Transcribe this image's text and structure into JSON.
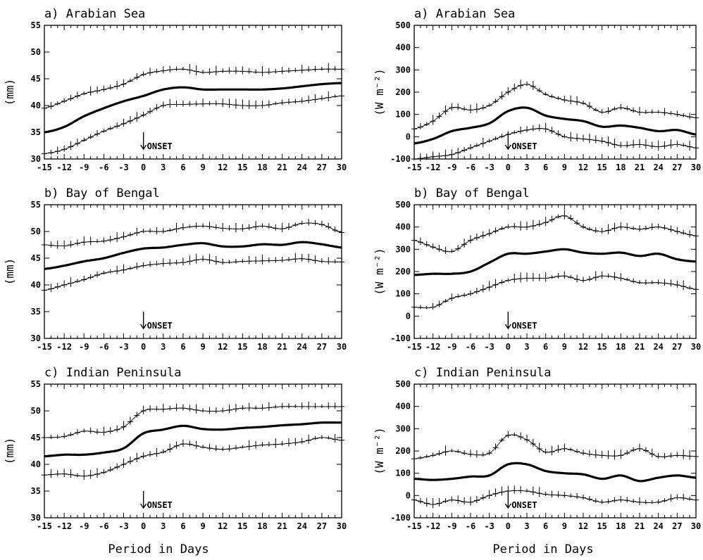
{
  "xlabel": "Period in Days",
  "chart_data": [
    {
      "type": "line",
      "title": "a) Arabian Sea",
      "ylabel": "(mm)",
      "xlim": [
        -15,
        30
      ],
      "ylim": [
        30,
        55
      ],
      "xticks": [
        -15,
        -12,
        -9,
        -6,
        -3,
        0,
        3,
        6,
        9,
        12,
        15,
        18,
        21,
        24,
        27,
        30
      ],
      "yticks": [
        30,
        35,
        40,
        45,
        50,
        55
      ],
      "annotation": {
        "text": "ONSET",
        "x": 0
      },
      "x": [
        -15,
        -12,
        -9,
        -6,
        -3,
        0,
        3,
        6,
        9,
        12,
        15,
        18,
        21,
        24,
        27,
        30
      ],
      "series": [
        {
          "role": "upper",
          "values": [
            39.5,
            40.8,
            42.2,
            43.0,
            44.0,
            45.8,
            46.5,
            46.8,
            46.2,
            46.4,
            46.4,
            46.2,
            46.4,
            46.6,
            46.8,
            46.8
          ]
        },
        {
          "role": "mean",
          "values": [
            35.0,
            36.0,
            38.0,
            39.5,
            40.8,
            41.8,
            43.0,
            43.4,
            43.0,
            43.0,
            43.0,
            43.0,
            43.2,
            43.6,
            44.0,
            44.2
          ]
        },
        {
          "role": "lower",
          "values": [
            31.0,
            31.8,
            33.5,
            35.2,
            36.6,
            38.2,
            40.0,
            40.2,
            40.3,
            40.3,
            40.0,
            40.0,
            40.5,
            40.8,
            41.3,
            41.8
          ]
        }
      ]
    },
    {
      "type": "line",
      "title": "a) Arabian Sea",
      "ylabel": "(W m⁻²)",
      "xlim": [
        -15,
        30
      ],
      "ylim": [
        -100,
        500
      ],
      "xticks": [
        -15,
        -12,
        -9,
        -6,
        -3,
        0,
        3,
        6,
        9,
        12,
        15,
        18,
        21,
        24,
        27,
        30
      ],
      "yticks": [
        -100,
        0,
        100,
        200,
        300,
        400,
        500
      ],
      "annotation": {
        "text": "ONSET",
        "x": 0
      },
      "x": [
        -15,
        -12,
        -9,
        -6,
        -3,
        0,
        3,
        6,
        9,
        12,
        15,
        18,
        21,
        24,
        27,
        30
      ],
      "series": [
        {
          "role": "upper",
          "values": [
            35,
            70,
            130,
            120,
            140,
            200,
            235,
            190,
            165,
            150,
            110,
            130,
            110,
            110,
            100,
            85
          ]
        },
        {
          "role": "mean",
          "values": [
            -30,
            -10,
            25,
            40,
            60,
            115,
            130,
            95,
            80,
            70,
            45,
            50,
            40,
            25,
            30,
            10
          ]
        },
        {
          "role": "lower",
          "values": [
            -100,
            -90,
            -80,
            -50,
            -20,
            10,
            30,
            35,
            0,
            -10,
            -20,
            -40,
            -35,
            -45,
            -35,
            -50
          ]
        }
      ]
    },
    {
      "type": "line",
      "title": "b) Bay of Bengal",
      "ylabel": "(mm)",
      "xlim": [
        -15,
        30
      ],
      "ylim": [
        30,
        55
      ],
      "xticks": [
        -15,
        -12,
        -9,
        -6,
        -3,
        0,
        3,
        6,
        9,
        12,
        15,
        18,
        21,
        24,
        27,
        30
      ],
      "yticks": [
        30,
        35,
        40,
        45,
        50,
        55
      ],
      "annotation": {
        "text": "ONSET",
        "x": 0
      },
      "x": [
        -15,
        -12,
        -9,
        -6,
        -3,
        0,
        3,
        6,
        9,
        12,
        15,
        18,
        21,
        24,
        27,
        30
      ],
      "series": [
        {
          "role": "upper",
          "values": [
            47.5,
            47.3,
            48.0,
            48.2,
            49.0,
            50.0,
            50.0,
            50.7,
            51.0,
            50.6,
            50.5,
            51.0,
            50.5,
            51.5,
            51.3,
            49.8
          ]
        },
        {
          "role": "mean",
          "values": [
            43.0,
            43.6,
            44.4,
            45.0,
            46.0,
            46.8,
            47.0,
            47.5,
            47.8,
            47.2,
            47.2,
            47.6,
            47.5,
            48.0,
            47.6,
            47.0
          ]
        },
        {
          "role": "lower",
          "values": [
            39.0,
            40.0,
            41.0,
            42.2,
            42.8,
            43.6,
            44.0,
            44.2,
            44.8,
            44.2,
            44.4,
            44.5,
            44.6,
            44.9,
            44.4,
            44.3
          ]
        }
      ]
    },
    {
      "type": "line",
      "title": "b) Bay of Bengal",
      "ylabel": "(W m⁻²)",
      "xlim": [
        -15,
        30
      ],
      "ylim": [
        -100,
        500
      ],
      "xticks": [
        -15,
        -12,
        -9,
        -6,
        -3,
        0,
        3,
        6,
        9,
        12,
        15,
        18,
        21,
        24,
        27,
        30
      ],
      "yticks": [
        -100,
        0,
        100,
        200,
        300,
        400,
        500
      ],
      "annotation": {
        "text": "ONSET",
        "x": 0
      },
      "x": [
        -15,
        -12,
        -9,
        -6,
        -3,
        0,
        3,
        6,
        9,
        12,
        15,
        18,
        21,
        24,
        27,
        30
      ],
      "series": [
        {
          "role": "upper",
          "values": [
            340,
            310,
            290,
            340,
            370,
            400,
            400,
            420,
            450,
            400,
            380,
            400,
            390,
            400,
            380,
            360
          ]
        },
        {
          "role": "mean",
          "values": [
            185,
            190,
            190,
            200,
            240,
            280,
            280,
            290,
            300,
            285,
            280,
            285,
            270,
            280,
            255,
            245
          ]
        },
        {
          "role": "lower",
          "values": [
            40,
            40,
            80,
            100,
            130,
            160,
            170,
            170,
            180,
            160,
            180,
            170,
            150,
            150,
            140,
            120
          ]
        }
      ]
    },
    {
      "type": "line",
      "title": "c) Indian Peninsula",
      "ylabel": "(mm)",
      "xlim": [
        -15,
        30
      ],
      "ylim": [
        30,
        55
      ],
      "xticks": [
        -15,
        -12,
        -9,
        -6,
        -3,
        0,
        3,
        6,
        9,
        12,
        15,
        18,
        21,
        24,
        27,
        30
      ],
      "yticks": [
        30,
        35,
        40,
        45,
        50,
        55
      ],
      "annotation": {
        "text": "ONSET",
        "x": 0
      },
      "x": [
        -15,
        -12,
        -9,
        -6,
        -3,
        0,
        3,
        6,
        9,
        12,
        15,
        18,
        21,
        24,
        27,
        30
      ],
      "series": [
        {
          "role": "upper",
          "values": [
            45.0,
            45.2,
            46.2,
            46.0,
            47.0,
            50.0,
            50.3,
            50.5,
            50.0,
            50.0,
            50.5,
            50.5,
            50.8,
            50.8,
            50.8,
            50.8
          ]
        },
        {
          "role": "mean",
          "values": [
            41.5,
            41.8,
            41.8,
            42.2,
            43.0,
            45.8,
            46.5,
            47.2,
            46.6,
            46.5,
            46.8,
            47.0,
            47.3,
            47.5,
            47.8,
            47.8
          ]
        },
        {
          "role": "lower",
          "values": [
            38.0,
            38.2,
            37.8,
            38.5,
            40.0,
            41.5,
            42.3,
            43.8,
            43.2,
            42.8,
            43.2,
            43.6,
            43.8,
            44.2,
            45.0,
            44.5
          ]
        }
      ]
    },
    {
      "type": "line",
      "title": "c) Indian Peninsula",
      "ylabel": "(W m⁻²)",
      "xlim": [
        -15,
        30
      ],
      "ylim": [
        -100,
        500
      ],
      "xticks": [
        -15,
        -12,
        -9,
        -6,
        -3,
        0,
        3,
        6,
        9,
        12,
        15,
        18,
        21,
        24,
        27,
        30
      ],
      "yticks": [
        -100,
        0,
        100,
        200,
        300,
        400,
        500
      ],
      "annotation": {
        "text": "ONSET",
        "x": 0
      },
      "x": [
        -15,
        -12,
        -9,
        -6,
        -3,
        0,
        3,
        6,
        9,
        12,
        15,
        18,
        21,
        24,
        27,
        30
      ],
      "series": [
        {
          "role": "upper",
          "values": [
            165,
            180,
            200,
            185,
            190,
            270,
            250,
            195,
            210,
            190,
            180,
            180,
            210,
            175,
            180,
            175
          ]
        },
        {
          "role": "mean",
          "values": [
            75,
            70,
            75,
            85,
            90,
            140,
            140,
            110,
            100,
            95,
            75,
            90,
            65,
            80,
            90,
            80
          ]
        },
        {
          "role": "lower",
          "values": [
            -20,
            -40,
            -20,
            -30,
            0,
            20,
            20,
            5,
            0,
            -10,
            -30,
            -20,
            -30,
            -30,
            -10,
            -20
          ]
        }
      ]
    }
  ]
}
